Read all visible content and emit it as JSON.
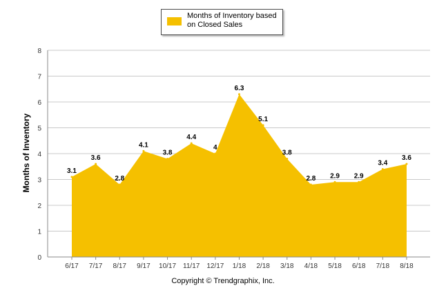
{
  "legend": {
    "label": "Months of Inventory based on Closed Sales"
  },
  "footer": {
    "copyright": "Copyright © Trendgraphix, Inc."
  },
  "chart_data": {
    "type": "area",
    "categories": [
      "6/17",
      "7/17",
      "8/17",
      "9/17",
      "10/17",
      "11/17",
      "12/17",
      "1/18",
      "2/18",
      "3/18",
      "4/18",
      "5/18",
      "6/18",
      "7/18",
      "8/18"
    ],
    "series": [
      {
        "name": "Months of Inventory based on Closed Sales",
        "values": [
          3.1,
          3.6,
          2.8,
          4.1,
          3.8,
          4.4,
          4,
          6.3,
          5.1,
          3.8,
          2.8,
          2.9,
          2.9,
          3.4,
          3.6
        ]
      }
    ],
    "data_labels": [
      "3.1",
      "3.6",
      "2.8",
      "4.1",
      "3.8",
      "4.4",
      "4",
      "6.3",
      "5.1",
      "3.8",
      "2.8",
      "2.9",
      "2.9",
      "3.4",
      "3.6"
    ],
    "ylabel": "Months of Inventory",
    "xlabel": "",
    "ylim": [
      0,
      8
    ],
    "yticks": [
      "0",
      "1",
      "2",
      "3",
      "4",
      "5",
      "6",
      "7",
      "8"
    ],
    "grid": true,
    "legend_position": "top-center",
    "colors": {
      "fill": "#f5c000",
      "grid": "#c8c8c8",
      "axis": "#888888",
      "text": "#000000"
    }
  }
}
